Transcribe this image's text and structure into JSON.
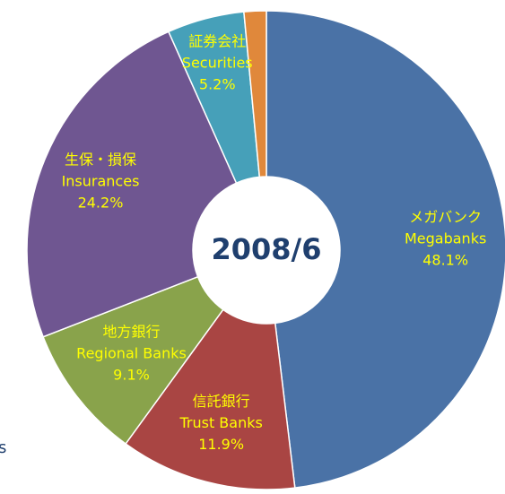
{
  "chart_data": {
    "type": "donut",
    "center_label": "2008/6",
    "labels_ja": [
      "メガバンク",
      "信託銀行",
      "地方銀行",
      "生保・損保",
      "証券会社",
      null
    ],
    "labels_en": [
      "Megabanks",
      "Trust Banks",
      "Regional Banks",
      "Insurances",
      "Securities",
      null
    ],
    "values": [
      48.1,
      11.9,
      9.1,
      24.2,
      5.2,
      1.5
    ],
    "value_labels": [
      "48.1%",
      "11.9%",
      "9.1%",
      "24.2%",
      "5.2%",
      null
    ],
    "colors": [
      "#4a72a6",
      "#a94543",
      "#89a34b",
      "#6f5691",
      "#46a0b9",
      "#e0883b"
    ],
    "annotation": "s"
  }
}
